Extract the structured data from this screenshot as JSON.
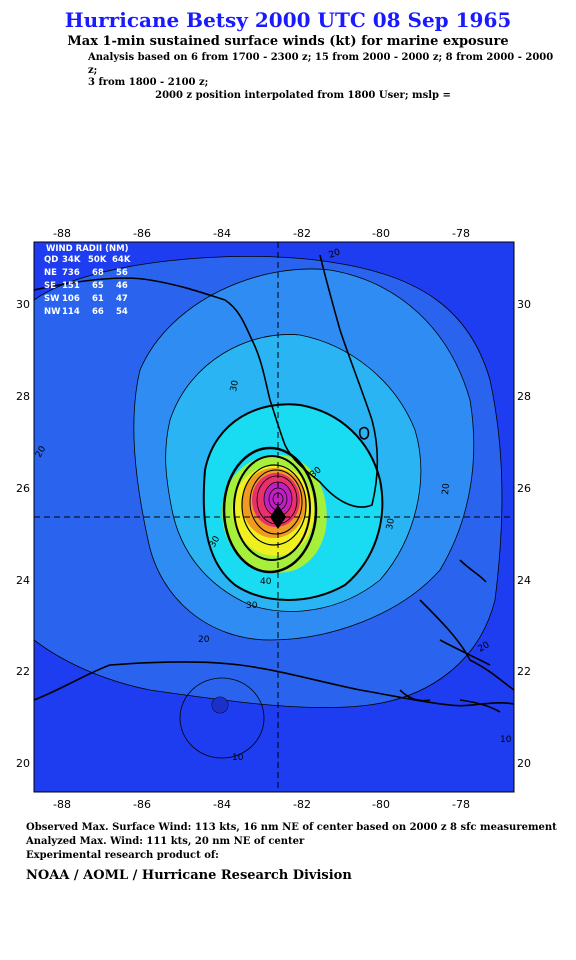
{
  "header": {
    "title": "Hurricane Betsy 2000 UTC 08 Sep 1965",
    "subtitle": "Max 1-min sustained surface winds (kt) for marine exposure",
    "analysis_line1": "Analysis based on  6 from 1700 - 2300 z;  15 from 2000 - 2000 z;  8 from 2000 - 2000 z;",
    "analysis_line2": "3 from 1800 - 2100 z;",
    "analysis_line3": "2000 z position interpolated from 1800 User; mslp ="
  },
  "map": {
    "lon_range": [
      -88.7,
      -76.7
    ],
    "lat_range": [
      19.4,
      31.4
    ],
    "lon_ticks": [
      "-88",
      "-86",
      "-84",
      "-82",
      "-80",
      "-78"
    ],
    "lat_ticks": [
      "30",
      "28",
      "26",
      "24",
      "22",
      "20"
    ],
    "center": {
      "lon": -82.7,
      "lat": 25.35
    },
    "colors": {
      "ocean": "#1e3cf0",
      "band_20": "#2a64ee",
      "band_30": "#2f8cf2",
      "band_40": "#2ab4f4",
      "band_50": "#19dcf2",
      "band_64": "#a6f03c",
      "band_80": "#f0f020",
      "band_96": "#f09a20",
      "band_110": "#e8306a",
      "band_core": "#c020c0",
      "grid_line": "#000000"
    },
    "contour_labels": [
      "20",
      "20",
      "20",
      "20",
      "30",
      "30",
      "30",
      "30",
      "40",
      "30",
      "10",
      "10",
      "20"
    ]
  },
  "wind_radii": {
    "title": "WIND RADII (NM)",
    "header": [
      "QD",
      "34K",
      "50K",
      "64K"
    ],
    "rows": [
      [
        "NE",
        "736",
        "68",
        "56"
      ],
      [
        "SE",
        "151",
        "65",
        "46"
      ],
      [
        "SW",
        "106",
        "61",
        "47"
      ],
      [
        "NW",
        "114",
        "66",
        "54"
      ]
    ]
  },
  "footer": {
    "observed": "Observed Max. Surface Wind: 113 kts, 16 nm NE of center based on 2000 z 8 sfc measurement",
    "analyzed": "Analyzed Max. Wind: 111 kts, 20 nm NE of center",
    "experimental": "Experimental research product of:",
    "division": "NOAA / AOML / Hurricane Research Division"
  }
}
